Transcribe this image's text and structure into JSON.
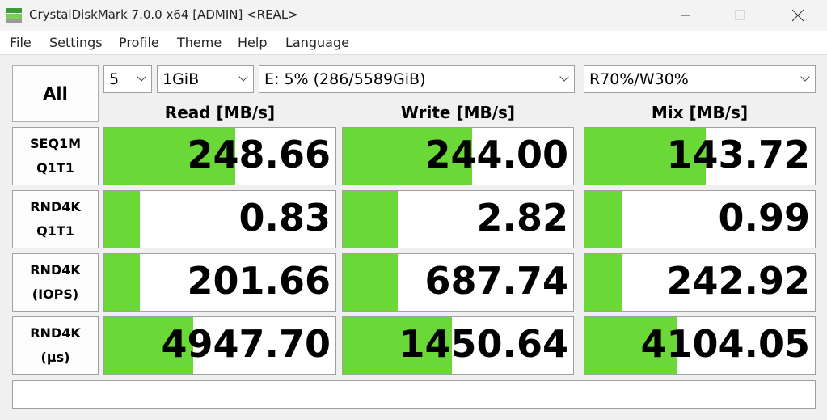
{
  "window": {
    "title": "CrystalDiskMark 7.0.0 x64 [ADMIN] <REAL>"
  },
  "menu": [
    "File",
    "Settings",
    "Profile",
    "Theme",
    "Help",
    "Language"
  ],
  "controls": {
    "count": "5",
    "size": "1GiB",
    "drive": "E: 5% (286/5589GiB)",
    "mix": "R70%/W30%"
  },
  "all_button": "All",
  "columns": [
    "Read [MB/s]",
    "Write [MB/s]",
    "Mix [MB/s]"
  ],
  "rows": [
    {
      "label": [
        "SEQ1M",
        "Q1T1"
      ],
      "values": [
        "248.66",
        "244.00",
        "143.72"
      ]
    },
    {
      "label": [
        "RND4K",
        "Q1T1"
      ],
      "values": [
        "0.83",
        "2.82",
        "0.99"
      ]
    },
    {
      "label": [
        "RND4K",
        "(IOPS)"
      ],
      "values": [
        "201.66",
        "687.74",
        "242.92"
      ]
    },
    {
      "label": [
        "RND4K",
        "(μs)"
      ],
      "values": [
        "4947.70",
        "1450.64",
        "4104.05"
      ]
    }
  ]
}
